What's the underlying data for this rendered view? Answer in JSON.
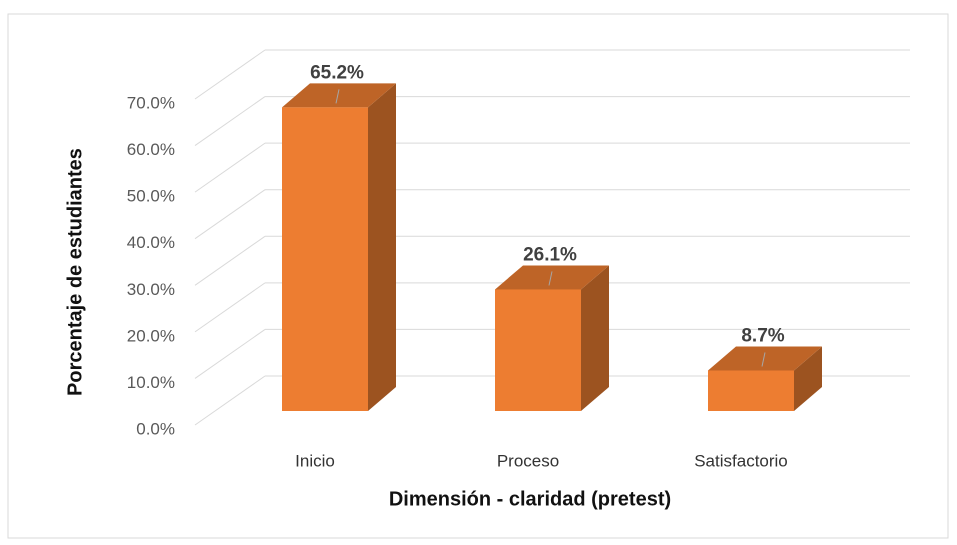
{
  "chart_data": {
    "type": "bar3d",
    "categories": [
      "Inicio",
      "Proceso",
      "Satisfactorio"
    ],
    "values": [
      65.2,
      26.1,
      8.7
    ],
    "value_labels": [
      "65.2%",
      "26.1%",
      "8.7%"
    ],
    "color": "#ED7D31",
    "xlabel": "Dimensión - claridad (pretest)",
    "ylabel": "Porcentaje de estudiantes",
    "ylim": [
      0,
      70
    ],
    "yticks": [
      {
        "value": 0,
        "label": "0.0%"
      },
      {
        "value": 10,
        "label": "10.0%"
      },
      {
        "value": 20,
        "label": "20.0%"
      },
      {
        "value": 30,
        "label": "30.0%"
      },
      {
        "value": 40,
        "label": "40.0%"
      },
      {
        "value": 50,
        "label": "50.0%"
      },
      {
        "value": 60,
        "label": "60.0%"
      },
      {
        "value": 70,
        "label": "70.0%"
      }
    ],
    "grid": true
  }
}
